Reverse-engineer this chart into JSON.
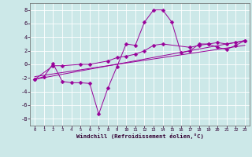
{
  "xlabel": "Windchill (Refroidissement éolien,°C)",
  "background_color": "#cce8e8",
  "line_color": "#990099",
  "grid_color": "#ffffff",
  "xlim": [
    -0.5,
    23.5
  ],
  "ylim": [
    -9,
    9
  ],
  "xticks": [
    0,
    1,
    2,
    3,
    4,
    5,
    6,
    7,
    8,
    9,
    10,
    11,
    12,
    13,
    14,
    15,
    16,
    17,
    18,
    19,
    20,
    21,
    22,
    23
  ],
  "yticks": [
    -8,
    -6,
    -4,
    -2,
    0,
    2,
    4,
    6,
    8
  ],
  "line1_x": [
    0,
    1,
    2,
    3,
    4,
    5,
    6,
    7,
    8,
    9,
    10,
    11,
    12,
    13,
    14,
    15,
    16,
    17,
    18,
    19,
    20,
    21,
    22,
    23
  ],
  "line1_y": [
    -2.2,
    -1.8,
    0.1,
    -2.5,
    -2.7,
    -2.7,
    -2.8,
    -7.3,
    -3.5,
    -0.3,
    3.0,
    2.8,
    6.2,
    8.0,
    8.0,
    6.2,
    1.7,
    2.0,
    3.0,
    3.0,
    2.5,
    2.2,
    2.8,
    3.5
  ],
  "line2_x": [
    0,
    2,
    3,
    5,
    6,
    8,
    9,
    10,
    11,
    12,
    13,
    14,
    17,
    18,
    19,
    20,
    21,
    22,
    23
  ],
  "line2_y": [
    -2.2,
    -0.2,
    -0.2,
    0.0,
    0.0,
    0.5,
    1.0,
    1.2,
    1.5,
    2.0,
    2.8,
    3.0,
    2.5,
    2.8,
    3.0,
    3.2,
    3.0,
    3.2,
    3.5
  ],
  "line3_x": [
    0,
    23
  ],
  "line3_y": [
    -2.2,
    3.5
  ],
  "line4_x": [
    0,
    23
  ],
  "line4_y": [
    -1.8,
    2.8
  ],
  "marker_size": 2.5,
  "line_width": 0.7
}
